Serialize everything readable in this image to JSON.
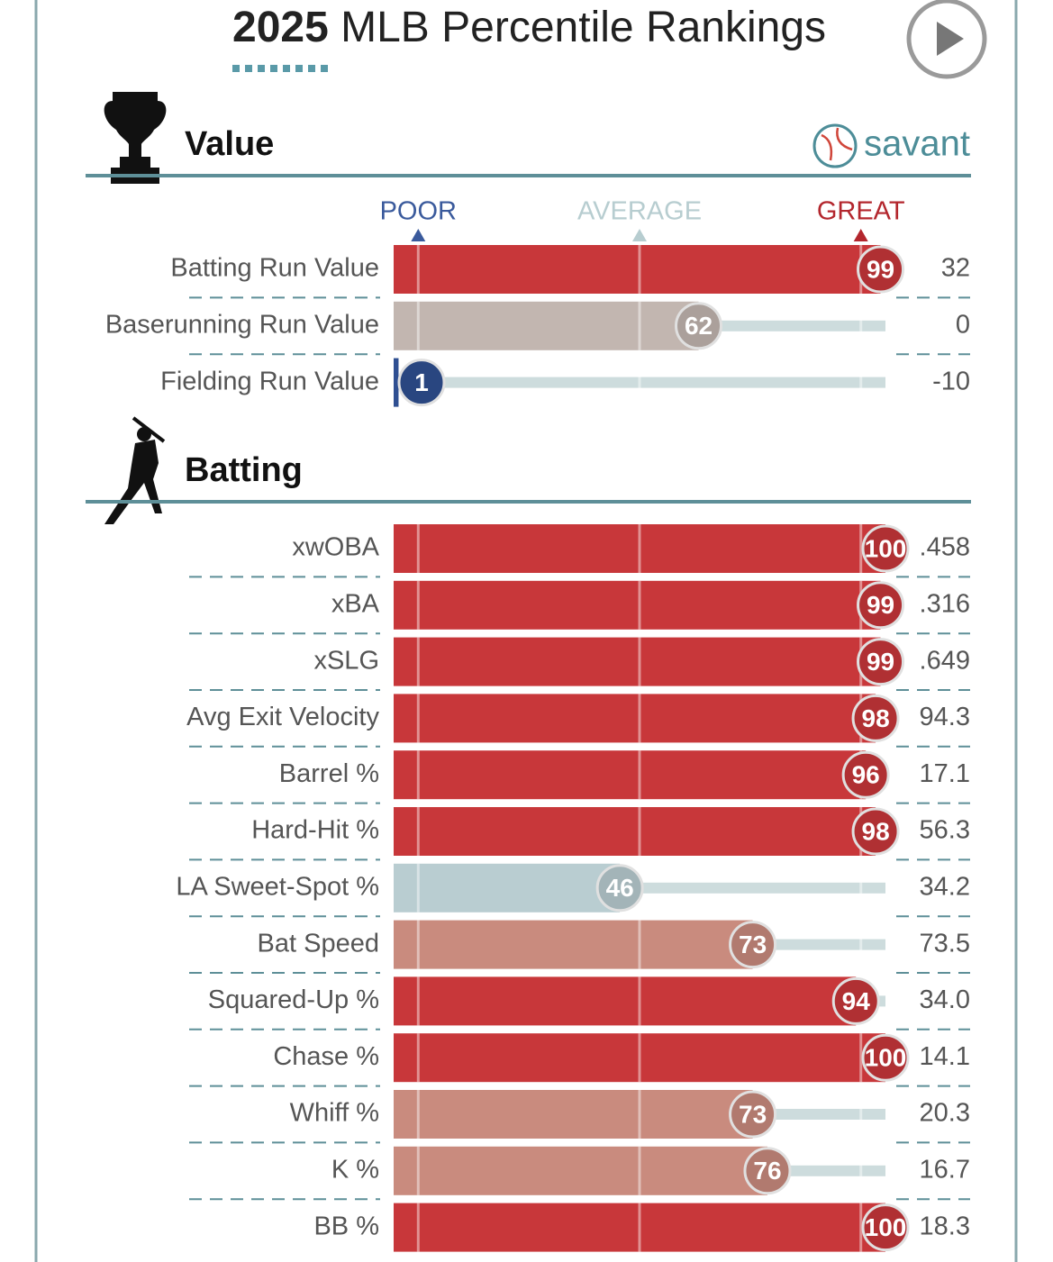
{
  "season": "2025",
  "title": "MLB Percentile Rankings",
  "brand": "savant",
  "chart_data": [
    {
      "type": "percentile",
      "title": "Value",
      "xlim": [
        0,
        100
      ],
      "xticks": [
        {
          "value": 5,
          "label": "POOR"
        },
        {
          "value": 50,
          "label": "AVERAGE"
        },
        {
          "value": 95,
          "label": "GREAT"
        }
      ],
      "tick_colors": [
        "#3a5a9c",
        "#b7cdd0",
        "#b3262d"
      ],
      "categories": [
        "Batting Run Value",
        "Baserunning Run Value",
        "Fielding Run Value"
      ],
      "values": [
        99,
        62,
        1
      ],
      "colors": [
        "#c8373a",
        "#c2b6b0",
        "#2f4f92"
      ],
      "stat_labels": [
        "32",
        "0",
        "-10"
      ]
    },
    {
      "type": "percentile",
      "title": "Batting",
      "xlim": [
        0,
        100
      ],
      "categories": [
        "xwOBA",
        "xBA",
        "xSLG",
        "Avg Exit Velocity",
        "Barrel %",
        "Hard-Hit %",
        "LA Sweet-Spot %",
        "Bat Speed",
        "Squared-Up %",
        "Chase %",
        "Whiff %",
        "K %",
        "BB %"
      ],
      "values": [
        100,
        99,
        99,
        98,
        96,
        98,
        46,
        73,
        94,
        100,
        73,
        76,
        100
      ],
      "colors": [
        "#c8373a",
        "#c8373a",
        "#c8373a",
        "#c8373a",
        "#c8373a",
        "#c8373a",
        "#b9cdd1",
        "#c98b7e",
        "#c8373a",
        "#c8373a",
        "#c98b7e",
        "#c98b7e",
        "#c8373a"
      ],
      "stat_labels": [
        ".458",
        ".316",
        ".649",
        "94.3",
        "17.1",
        "56.3",
        "34.2",
        "73.5",
        "34.0",
        "14.1",
        "20.3",
        "16.7",
        "18.3"
      ]
    }
  ]
}
